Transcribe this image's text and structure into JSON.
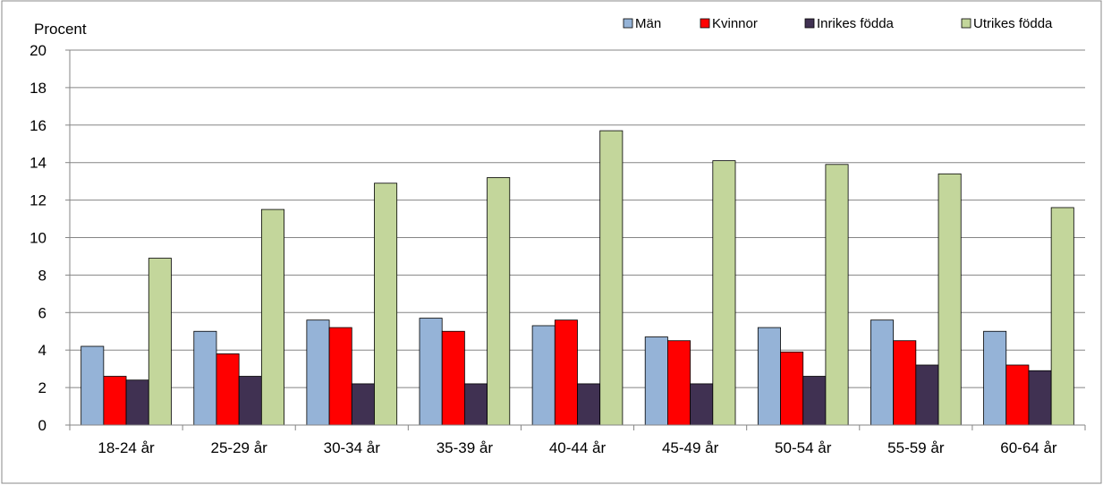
{
  "chart_data": {
    "type": "bar",
    "title": "",
    "xlabel": "",
    "ylabel": "Procent",
    "ylim": [
      0,
      20
    ],
    "yticks": [
      0,
      2,
      4,
      6,
      8,
      10,
      12,
      14,
      16,
      18,
      20
    ],
    "grid": true,
    "legend_position": "top-right",
    "categories": [
      "18-24 år",
      "25-29 år",
      "30-34 år",
      "35-39 år",
      "40-44 år",
      "45-49 år",
      "50-54 år",
      "55-59 år",
      "60-64 år"
    ],
    "series": [
      {
        "name": "Män",
        "color": "#95b3d7",
        "values": [
          4.2,
          5.0,
          5.6,
          5.7,
          5.3,
          4.7,
          5.2,
          5.6,
          5.0
        ]
      },
      {
        "name": "Kvinnor",
        "color": "#ff0000",
        "values": [
          2.6,
          3.8,
          5.2,
          5.0,
          5.6,
          4.5,
          3.9,
          4.5,
          3.2
        ]
      },
      {
        "name": "Inrikes födda",
        "color": "#403152",
        "values": [
          2.4,
          2.6,
          2.2,
          2.2,
          2.2,
          2.2,
          2.6,
          3.2,
          2.9
        ]
      },
      {
        "name": "Utrikes födda",
        "color": "#c3d69b",
        "values": [
          8.9,
          11.5,
          12.9,
          13.2,
          15.7,
          14.1,
          13.9,
          13.4,
          11.6
        ]
      }
    ]
  }
}
